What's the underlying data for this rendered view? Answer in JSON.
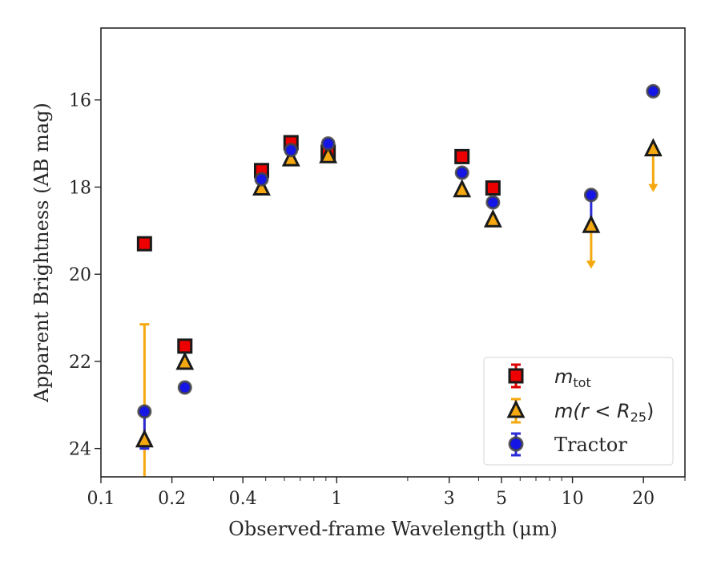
{
  "chart_data": {
    "type": "scatter",
    "title": "",
    "xlabel": "Observed-frame Wavelength (μm)",
    "ylabel": "Apparent Brightness (AB mag)",
    "xscale": "log",
    "xlim": [
      0.1,
      30
    ],
    "ylim": [
      24.65,
      14.35
    ],
    "y_inverted": true,
    "x_tick_labels": [
      "0.1",
      "0.2",
      "0.4",
      "1",
      "3",
      "5",
      "10",
      "20"
    ],
    "x_ticks": [
      0.1,
      0.2,
      0.4,
      1,
      3,
      5,
      10,
      20
    ],
    "y_tick_labels": [
      "16",
      "18",
      "20",
      "22",
      "24"
    ],
    "y_ticks": [
      16,
      18,
      20,
      22,
      24
    ],
    "legend_position": "lower-right",
    "legend": {
      "m_tot_base": "m",
      "m_tot_sub": "tot",
      "m_r25_prefix": "m(r < R",
      "m_r25_sub": "25",
      "m_r25_suffix": ")",
      "tractor": "Tractor"
    },
    "series": [
      {
        "id": "m_tot",
        "marker": "square",
        "face_color": "#ee0000",
        "edge_color": "#1a1a1a",
        "err_color": "#dd0000",
        "points": [
          {
            "x": 0.153,
            "y": 19.3
          },
          {
            "x": 0.227,
            "y": 21.65
          },
          {
            "x": 0.48,
            "y": 17.62
          },
          {
            "x": 0.64,
            "y": 16.98
          },
          {
            "x": 0.92,
            "y": 17.2
          },
          {
            "x": 3.4,
            "y": 17.3
          },
          {
            "x": 4.6,
            "y": 18.02
          }
        ]
      },
      {
        "id": "m_r25",
        "marker": "triangle",
        "face_color": "#f5a80f",
        "edge_color": "#1a1a1a",
        "err_color": "#f5a80f",
        "points": [
          {
            "x": 0.153,
            "y": 23.8,
            "err_minus": 2.65,
            "err_plus": 1.0
          },
          {
            "x": 0.227,
            "y": 22.02
          },
          {
            "x": 0.48,
            "y": 18.02
          },
          {
            "x": 0.64,
            "y": 17.35
          },
          {
            "x": 0.92,
            "y": 17.28
          },
          {
            "x": 3.4,
            "y": 18.06
          },
          {
            "x": 4.6,
            "y": 18.75
          },
          {
            "x": 12.0,
            "y": 18.88,
            "upper_limit": true
          },
          {
            "x": 22.0,
            "y": 17.12,
            "upper_limit": true
          }
        ]
      },
      {
        "id": "tractor",
        "marker": "circle",
        "face_color": "#1515e6",
        "edge_color": "#444444",
        "err_color": "#2a2ad8",
        "points": [
          {
            "x": 0.153,
            "y": 23.15,
            "err_plus": 0.85
          },
          {
            "x": 0.227,
            "y": 22.6
          },
          {
            "x": 0.48,
            "y": 17.82
          },
          {
            "x": 0.64,
            "y": 17.15
          },
          {
            "x": 0.92,
            "y": 17.0
          },
          {
            "x": 3.4,
            "y": 17.67
          },
          {
            "x": 4.6,
            "y": 18.35
          },
          {
            "x": 12.0,
            "y": 18.18,
            "err_plus": 0.8
          },
          {
            "x": 22.0,
            "y": 15.8
          }
        ]
      }
    ]
  }
}
